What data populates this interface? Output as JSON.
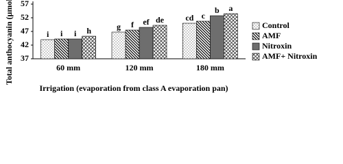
{
  "chart_data": {
    "type": "bar",
    "y_label": "Total anthocyanin (µmol/g Fw)",
    "x_label": "Irrigation  (evaporation from class A evaporation pan)",
    "categories": [
      "60 mm",
      "120 mm",
      "180 mm"
    ],
    "series": [
      {
        "name": "Control",
        "color": "#ffffff",
        "pattern": "dots",
        "values": [
          44,
          46.75,
          50
        ],
        "labels": [
          "i",
          "g",
          "cd"
        ]
      },
      {
        "name": "AMF",
        "color": "#ffffff",
        "pattern": "hatch",
        "values": [
          44.25,
          47.5,
          50.75
        ],
        "labels": [
          "i",
          "f",
          "c"
        ]
      },
      {
        "name": "Nitroxin",
        "color": "#6e6e6e",
        "pattern": "solid",
        "values": [
          44.25,
          48.5,
          52.75
        ],
        "labels": [
          "i",
          "ef",
          "b"
        ]
      },
      {
        "name": "AMF+ Nitroxin",
        "color": "#ffffff",
        "pattern": "cross",
        "values": [
          45.25,
          49.25,
          53.5
        ],
        "labels": [
          "h",
          "de",
          "a"
        ]
      }
    ],
    "ylim": [
      37,
      57
    ],
    "yticks": [
      37,
      42,
      47,
      52,
      57
    ],
    "grid": false
  }
}
